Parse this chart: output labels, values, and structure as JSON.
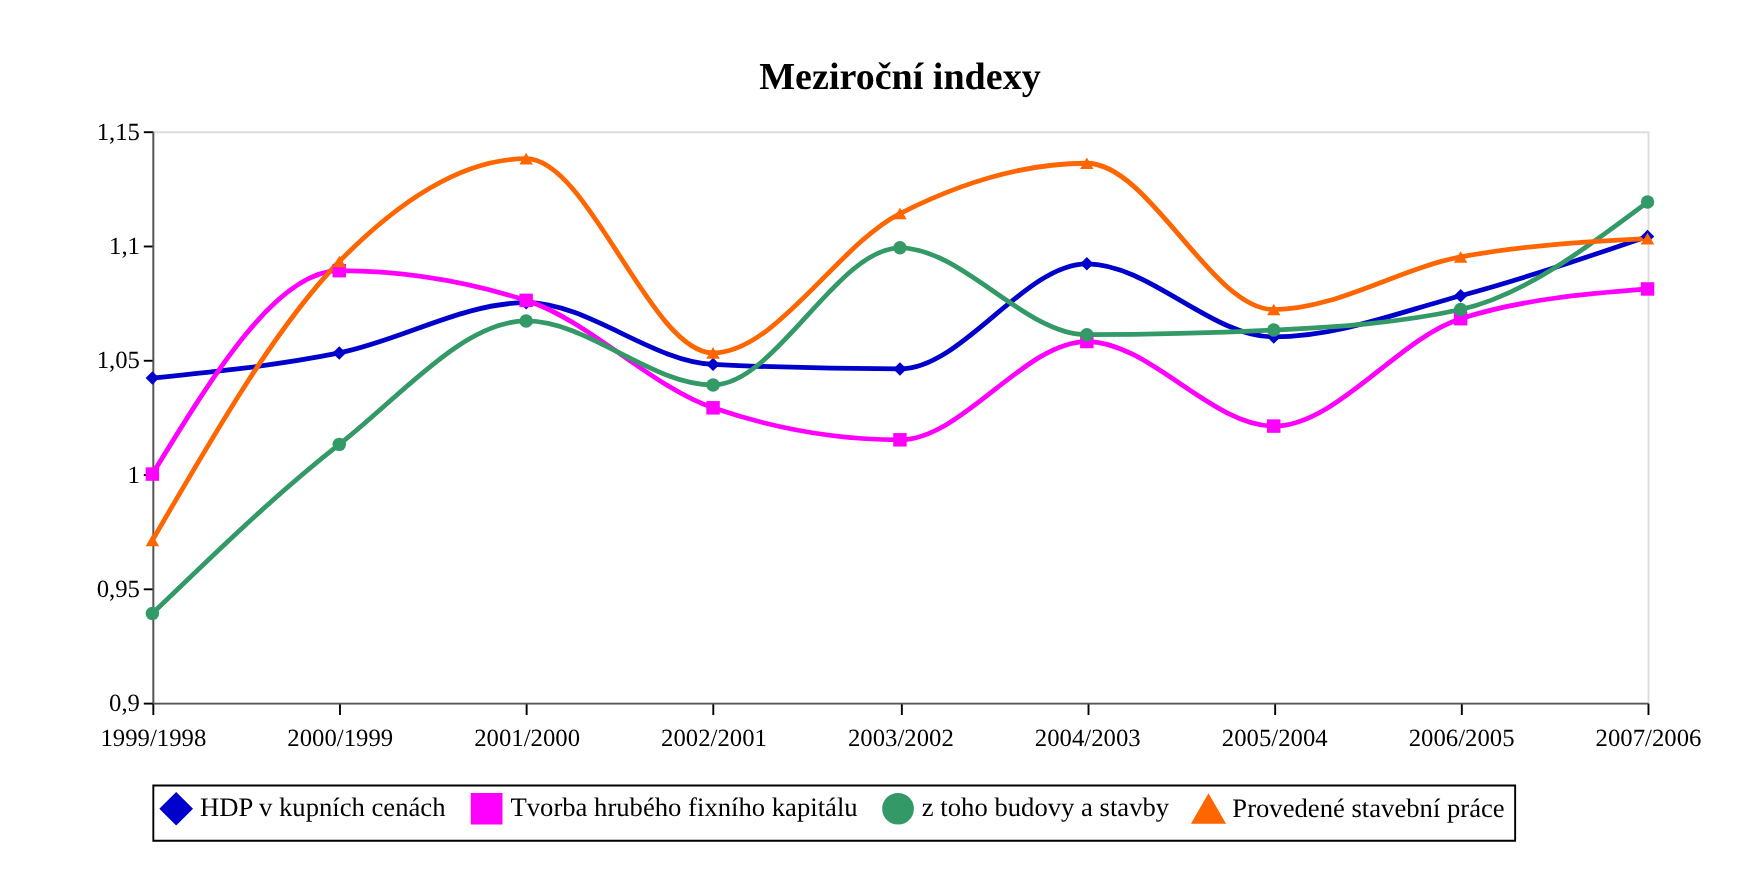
{
  "chart_data": {
    "type": "line",
    "title": "Meziroční indexy",
    "categories": [
      "1999/1998",
      "2000/1999",
      "2001/2000",
      "2002/2001",
      "2003/2002",
      "2004/2003",
      "2005/2004",
      "2006/2005",
      "2007/2006"
    ],
    "series": [
      {
        "name": "HDP v kupních cenách",
        "color": "#0000cc",
        "marker": "diamond",
        "values": [
          1.042,
          1.053,
          1.075,
          1.048,
          1.046,
          1.092,
          1.06,
          1.078,
          1.104
        ]
      },
      {
        "name": "Tvorba hrubého fixního kapitálu",
        "color": "#ff00ff",
        "marker": "square",
        "values": [
          1.0,
          1.089,
          1.076,
          1.029,
          1.015,
          1.058,
          1.021,
          1.068,
          1.081
        ]
      },
      {
        "name": "z toho budovy a stavby",
        "color": "#339966",
        "marker": "circle",
        "values": [
          0.939,
          1.013,
          1.067,
          1.039,
          1.099,
          1.061,
          1.063,
          1.072,
          1.119
        ]
      },
      {
        "name": "Provedené stavební práce",
        "color": "#ff6600",
        "marker": "triangle",
        "values": [
          0.971,
          1.093,
          1.138,
          1.053,
          1.114,
          1.136,
          1.072,
          1.095,
          1.103
        ]
      }
    ],
    "ylim": [
      0.9,
      1.15
    ],
    "yticks": [
      {
        "value": 0.9,
        "label": "0,9"
      },
      {
        "value": 0.95,
        "label": "0,95"
      },
      {
        "value": 1,
        "label": "1"
      },
      {
        "value": 1.05,
        "label": "1,05"
      },
      {
        "value": 1.1,
        "label": "1,1"
      },
      {
        "value": 1.15,
        "label": "1,15"
      }
    ],
    "grid": false,
    "legend": "bottom",
    "line_style": "solid"
  }
}
